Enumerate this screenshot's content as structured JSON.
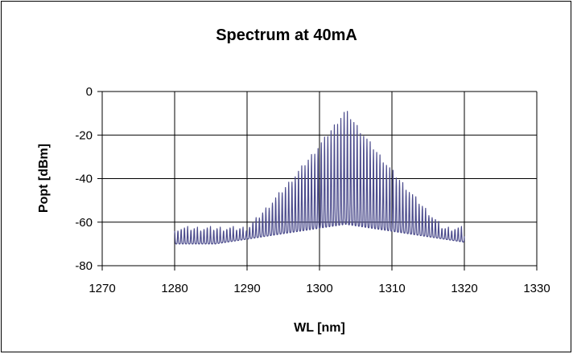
{
  "chart_data": {
    "type": "line",
    "title": "Spectrum at 40mA",
    "xlabel": "WL [nm]",
    "ylabel": "Popt [dBm]",
    "xlim": [
      1270,
      1330
    ],
    "ylim": [
      -80,
      0
    ],
    "xticks": [
      1270,
      1280,
      1290,
      1300,
      1310,
      1320,
      1330
    ],
    "yticks": [
      0,
      -20,
      -40,
      -60,
      -80
    ],
    "grid": "major-both",
    "legend": "none",
    "line_color": "#4b4b8c",
    "series": [
      {
        "x_range": [
          1280,
          1320
        ],
        "mode_spacing_nm": 0.45,
        "peak_wl": 1303.6,
        "peak_dbm": -9,
        "floor_center_dbm": -61,
        "floor_edge_dbm": -70,
        "edge_peak_dbm": -63
      }
    ]
  }
}
